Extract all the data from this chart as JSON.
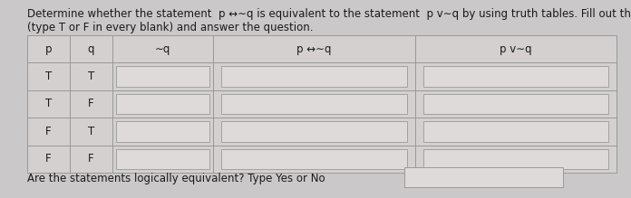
{
  "title_line1": "Determine whether the statement  p ↔∼q is equivalent to the statement  p v∼q by using truth tables. Fill out the table",
  "title_line2": "(type T or F in every blank) and answer the question.",
  "header_labels": [
    "p",
    "q",
    "∼q",
    "p ↔∼q",
    "p v∼q"
  ],
  "rows": [
    [
      "T",
      "T"
    ],
    [
      "T",
      "F"
    ],
    [
      "F",
      "T"
    ],
    [
      "F",
      "F"
    ]
  ],
  "footer_text": "Are the statements logically equivalent? Type Yes or No",
  "bg_color": "#cac8c8",
  "table_bg": "#d4d0d0",
  "input_box_color": "#dedad9",
  "border_color": "#999999",
  "text_color": "#1a1a1a",
  "font_size": 8.5,
  "title_font_size": 8.5
}
